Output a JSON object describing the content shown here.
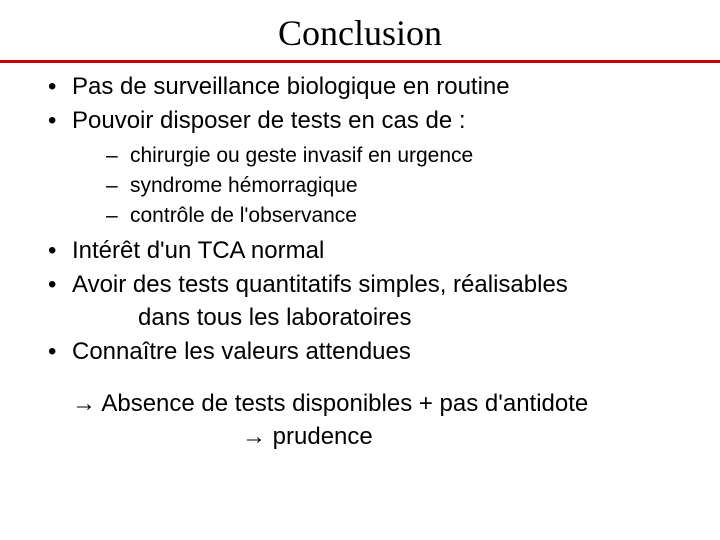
{
  "title": "Conclusion",
  "accent_color": "#cc0000",
  "bullets": {
    "b1": "Pas de surveillance biologique en routine",
    "b2": "Pouvoir disposer de tests en cas de :",
    "b2_sub": {
      "s1": "chirurgie ou geste invasif en urgence",
      "s2": "syndrome hémorragique",
      "s3": "contrôle de l'observance"
    },
    "b3": "Intérêt d'un TCA normal",
    "b4_line1": "Avoir des tests quantitatifs simples, réalisables",
    "b4_line2": "dans tous les laboratoires",
    "b5": "Connaître les valeurs attendues"
  },
  "conclusion": {
    "arrow": "→",
    "line1_text": " Absence de tests disponibles + pas d'antidote",
    "line2_text": " prudence"
  },
  "typography": {
    "title_font": "Comic Sans MS",
    "title_size_pt": 36,
    "body_font": "Arial",
    "level1_size_pt": 24,
    "level2_size_pt": 21
  }
}
